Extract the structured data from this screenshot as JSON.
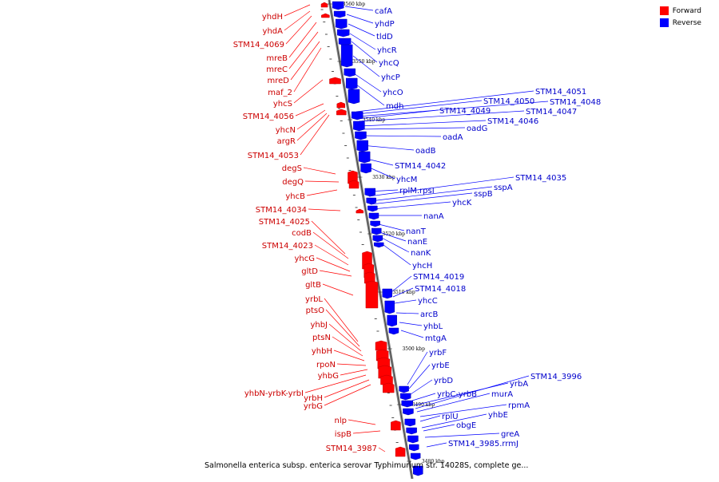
{
  "legend": {
    "forward_label": "Forward",
    "reverse_label": "Reverse",
    "forward_color": "#ff0000",
    "reverse_color": "#0000ff"
  },
  "caption": "Salmonella enterica subsp. enterica serovar Typhimurium str. 14028S, complete ge...",
  "axis_ticks": [
    "3560 kbp",
    "3550 kbp",
    "3540 kbp",
    "3530 kbp",
    "3520 kbp",
    "3510 kbp",
    "3500 kbp",
    "3490 kbp",
    "3480 kbp"
  ],
  "forward_genes": [
    "yhdH",
    "yhdA",
    "STM14_4069",
    "mreB",
    "mreC",
    "mreD",
    "maf_2",
    "yhcS",
    "STM14_4056",
    "yhcN",
    "argR",
    "STM14_4053",
    "degS",
    "degQ",
    "yhcB",
    "STM14_4034",
    "STM14_4025",
    "codB",
    "STM14_4023",
    "yhcG",
    "gltD",
    "gltB",
    "yrbL",
    "ptsO",
    "yhbJ",
    "ptsN",
    "yhbH",
    "rpoN",
    "yhbG",
    "yhbN-yrbK-yrbI",
    "yrbH",
    "yrbG",
    "nlp",
    "ispB",
    "STM14_3987"
  ],
  "reverse_genes": [
    "cafA",
    "yhdP",
    "tldD",
    "yhcR",
    "yhcQ",
    "yhcP",
    "yhcO",
    "mdh",
    "STM14_4051",
    "STM14_4050",
    "STM14_4048",
    "STM14_4049",
    "STM14_4047",
    "STM14_4046",
    "oadG",
    "oadA",
    "oadB",
    "STM14_4042",
    "yhcM",
    "rplM.rpsI",
    "STM14_4035",
    "sspA",
    "sspB",
    "yhcK",
    "nanA",
    "nanT",
    "nanE",
    "nanK",
    "yhcH",
    "STM14_4019",
    "STM14_4018",
    "yhcC",
    "arcB",
    "yhbL",
    "mtgA",
    "yrbF",
    "yrbE",
    "yrbD",
    "yrbC-yrbB",
    "yrbA",
    "STM14_3996",
    "murA",
    "rpmA",
    "rplU",
    "yhbE",
    "obgE",
    "greA",
    "STM14_3985.rrmJ"
  ]
}
